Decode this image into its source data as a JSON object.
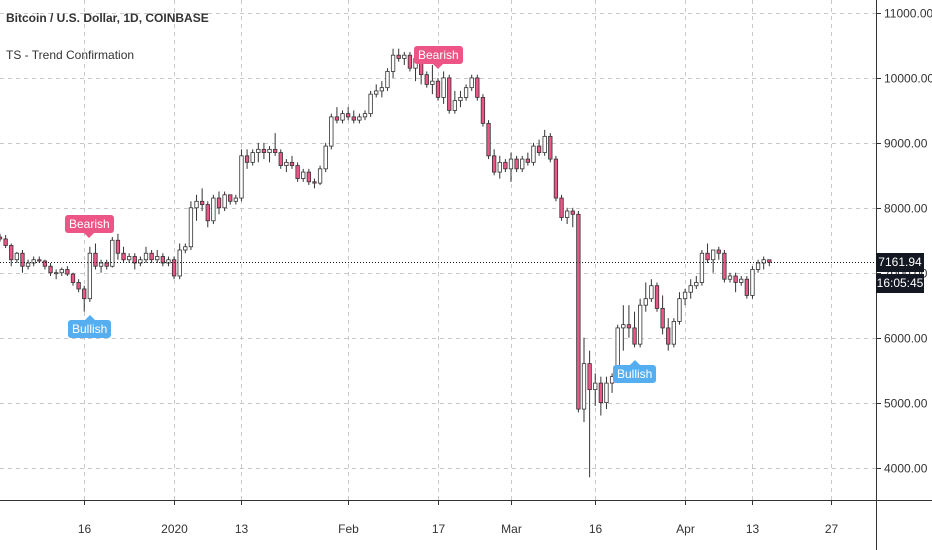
{
  "header": {
    "title": "Bitcoin / U.S. Dollar, 1D, COINBASE",
    "indicator": "TS - Trend Confirmation"
  },
  "price_tags": {
    "last_price": "7161.94",
    "countdown": "16:05:45"
  },
  "colors": {
    "bear": "#ec5586",
    "bull": "#55aef0",
    "grid": "#c8c8c8",
    "axis": "#333333"
  },
  "signals": [
    {
      "label": "Bearish",
      "type": "bearish",
      "date": "2019-12-17"
    },
    {
      "label": "Bullish",
      "type": "bullish",
      "date": "2019-12-17"
    },
    {
      "label": "Bearish",
      "type": "bearish",
      "date": "2020-02-17"
    },
    {
      "label": "Bullish",
      "type": "bullish",
      "date": "2020-03-23"
    }
  ],
  "chart_data": {
    "type": "candlestick",
    "title": "Bitcoin / U.S. Dollar, 1D, COINBASE",
    "x_tick_labels": [
      "16",
      "2020",
      "13",
      "Feb",
      "17",
      "Mar",
      "16",
      "Apr",
      "13",
      "27"
    ],
    "y_tick_labels": [
      "4000.00",
      "5000.00",
      "6000.00",
      "7000.00",
      "8000.00",
      "9000.00",
      "10000.00",
      "11000.00"
    ],
    "ylim": [
      3500,
      11200
    ],
    "xlim": [
      "2019-12-01",
      "2020-05-05"
    ],
    "grid": true,
    "last_price": 7161.94,
    "x_ticks": [
      {
        "label": "16",
        "date": "2019-12-16"
      },
      {
        "label": "2020",
        "date": "2020-01-01"
      },
      {
        "label": "13",
        "date": "2020-01-13"
      },
      {
        "label": "Feb",
        "date": "2020-02-01"
      },
      {
        "label": "17",
        "date": "2020-02-17"
      },
      {
        "label": "Mar",
        "date": "2020-03-01"
      },
      {
        "label": "16",
        "date": "2020-03-16"
      },
      {
        "label": "Apr",
        "date": "2020-04-01"
      },
      {
        "label": "13",
        "date": "2020-04-13"
      },
      {
        "label": "27",
        "date": "2020-04-27"
      }
    ],
    "y_ticks": [
      4000,
      5000,
      6000,
      7000,
      8000,
      9000,
      10000,
      11000
    ],
    "start_date": "2019-12-01",
    "ohlc": [
      [
        7550,
        7600,
        7480,
        7520
      ],
      [
        7520,
        7580,
        7380,
        7420
      ],
      [
        7420,
        7450,
        7100,
        7200
      ],
      [
        7200,
        7320,
        7150,
        7300
      ],
      [
        7300,
        7350,
        7000,
        7100
      ],
      [
        7100,
        7200,
        7050,
        7150
      ],
      [
        7150,
        7250,
        7100,
        7200
      ],
      [
        7200,
        7250,
        7150,
        7180
      ],
      [
        7180,
        7200,
        7050,
        7100
      ],
      [
        7100,
        7150,
        6950,
        7000
      ],
      [
        7000,
        7050,
        6900,
        7000
      ],
      [
        7000,
        7080,
        6950,
        7050
      ],
      [
        7050,
        7100,
        6950,
        6980
      ],
      [
        6980,
        7000,
        6800,
        6850
      ],
      [
        6850,
        6900,
        6700,
        6750
      ],
      [
        6750,
        6800,
        6400,
        6600
      ],
      [
        6600,
        7400,
        6550,
        7300
      ],
      [
        7300,
        7450,
        7050,
        7100
      ],
      [
        7100,
        7200,
        7000,
        7150
      ],
      [
        7150,
        7200,
        7050,
        7100
      ],
      [
        7100,
        7550,
        7080,
        7500
      ],
      [
        7500,
        7600,
        7200,
        7300
      ],
      [
        7300,
        7400,
        7150,
        7200
      ],
      [
        7200,
        7300,
        7150,
        7250
      ],
      [
        7250,
        7300,
        7050,
        7150
      ],
      [
        7150,
        7250,
        7100,
        7200
      ],
      [
        7200,
        7400,
        7150,
        7300
      ],
      [
        7300,
        7350,
        7150,
        7200
      ],
      [
        7200,
        7350,
        7150,
        7250
      ],
      [
        7250,
        7300,
        7100,
        7150
      ],
      [
        7150,
        7250,
        7100,
        7200
      ],
      [
        7200,
        7250,
        6900,
        6950
      ],
      [
        6950,
        7450,
        6900,
        7350
      ],
      [
        7350,
        7450,
        7300,
        7400
      ],
      [
        7400,
        8100,
        7350,
        8000
      ],
      [
        8000,
        8200,
        7800,
        8100
      ],
      [
        8100,
        8300,
        7950,
        8050
      ],
      [
        8050,
        8100,
        7700,
        7800
      ],
      [
        7800,
        8200,
        7750,
        8150
      ],
      [
        8150,
        8250,
        7900,
        8000
      ],
      [
        8000,
        8250,
        7950,
        8200
      ],
      [
        8200,
        8200,
        8050,
        8100
      ],
      [
        8100,
        8200,
        8050,
        8150
      ],
      [
        8150,
        8900,
        8100,
        8800
      ],
      [
        8800,
        8900,
        8600,
        8700
      ],
      [
        8700,
        8900,
        8650,
        8850
      ],
      [
        8850,
        9000,
        8700,
        8900
      ],
      [
        8900,
        9000,
        8750,
        8850
      ],
      [
        8850,
        8950,
        8700,
        8900
      ],
      [
        8900,
        9150,
        8800,
        8850
      ],
      [
        8850,
        8900,
        8600,
        8650
      ],
      [
        8650,
        8750,
        8550,
        8700
      ],
      [
        8700,
        8800,
        8600,
        8650
      ],
      [
        8650,
        8700,
        8400,
        8450
      ],
      [
        8450,
        8600,
        8400,
        8550
      ],
      [
        8550,
        8600,
        8350,
        8400
      ],
      [
        8400,
        8450,
        8300,
        8380
      ],
      [
        8380,
        8650,
        8350,
        8600
      ],
      [
        8600,
        9000,
        8550,
        8950
      ],
      [
        8950,
        9450,
        8900,
        9400
      ],
      [
        9400,
        9550,
        9300,
        9350
      ],
      [
        9350,
        9500,
        9300,
        9450
      ],
      [
        9450,
        9550,
        9350,
        9400
      ],
      [
        9400,
        9500,
        9300,
        9350
      ],
      [
        9350,
        9450,
        9300,
        9400
      ],
      [
        9400,
        9500,
        9350,
        9450
      ],
      [
        9450,
        9800,
        9400,
        9750
      ],
      [
        9750,
        9900,
        9700,
        9800
      ],
      [
        9800,
        9950,
        9700,
        9850
      ],
      [
        9850,
        10150,
        9800,
        10100
      ],
      [
        10100,
        10450,
        10000,
        10350
      ],
      [
        10350,
        10450,
        10250,
        10300
      ],
      [
        10300,
        10400,
        10200,
        10350
      ],
      [
        10350,
        10400,
        10100,
        10150
      ],
      [
        10150,
        10400,
        9950,
        10300
      ],
      [
        10300,
        10350,
        9900,
        10050
      ],
      [
        10050,
        10100,
        9850,
        9900
      ],
      [
        9900,
        10200,
        9750,
        9950
      ],
      [
        9950,
        10000,
        9650,
        9700
      ],
      [
        9700,
        10100,
        9600,
        10000
      ],
      [
        10000,
        10050,
        9450,
        9500
      ],
      [
        9500,
        9800,
        9450,
        9650
      ],
      [
        9650,
        9800,
        9550,
        9700
      ],
      [
        9700,
        9900,
        9650,
        9850
      ],
      [
        9850,
        10050,
        9800,
        10000
      ],
      [
        10000,
        10050,
        9650,
        9700
      ],
      [
        9700,
        9750,
        9250,
        9300
      ],
      [
        9300,
        9350,
        8750,
        8800
      ],
      [
        8800,
        8900,
        8500,
        8550
      ],
      [
        8550,
        8800,
        8450,
        8700
      ],
      [
        8700,
        8750,
        8550,
        8600
      ],
      [
        8600,
        8850,
        8400,
        8750
      ],
      [
        8750,
        8800,
        8550,
        8600
      ],
      [
        8600,
        8800,
        8550,
        8750
      ],
      [
        8750,
        8850,
        8650,
        8700
      ],
      [
        8700,
        9000,
        8650,
        8950
      ],
      [
        8950,
        9050,
        8800,
        8850
      ],
      [
        8850,
        9200,
        8800,
        9100
      ],
      [
        9100,
        9150,
        8700,
        8750
      ],
      [
        8750,
        8800,
        8100,
        8150
      ],
      [
        8150,
        8200,
        7800,
        7850
      ],
      [
        7850,
        8000,
        7750,
        7950
      ],
      [
        7950,
        8000,
        7700,
        7900
      ],
      [
        7900,
        7950,
        4850,
        4900
      ],
      [
        4900,
        6000,
        4700,
        5600
      ],
      [
        5600,
        5800,
        3850,
        5200
      ],
      [
        5200,
        5450,
        4950,
        5300
      ],
      [
        5300,
        5400,
        4800,
        5000
      ],
      [
        5000,
        5400,
        4900,
        5300
      ],
      [
        5300,
        5450,
        5150,
        5400
      ],
      [
        5400,
        6200,
        5300,
        6150
      ],
      [
        6150,
        6500,
        5800,
        6200
      ],
      [
        6200,
        6500,
        6000,
        6150
      ],
      [
        6150,
        6400,
        5850,
        5900
      ],
      [
        5900,
        6600,
        5850,
        6500
      ],
      [
        6500,
        6850,
        6400,
        6600
      ],
      [
        6600,
        6900,
        6550,
        6800
      ],
      [
        6800,
        6850,
        6400,
        6450
      ],
      [
        6450,
        6650,
        6050,
        6150
      ],
      [
        6150,
        6300,
        5800,
        5900
      ],
      [
        5900,
        6300,
        5850,
        6250
      ],
      [
        6250,
        6700,
        6200,
        6600
      ],
      [
        6600,
        6750,
        6500,
        6700
      ],
      [
        6700,
        6900,
        6600,
        6800
      ],
      [
        6800,
        6950,
        6750,
        6850
      ],
      [
        6850,
        7350,
        6800,
        7300
      ],
      [
        7300,
        7450,
        7150,
        7200
      ],
      [
        7200,
        7350,
        7000,
        7350
      ],
      [
        7350,
        7400,
        7200,
        7300
      ],
      [
        7300,
        7350,
        6850,
        6900
      ],
      [
        6900,
        7000,
        6850,
        6950
      ],
      [
        6950,
        7000,
        6700,
        6850
      ],
      [
        6850,
        6950,
        6800,
        6900
      ],
      [
        6900,
        6950,
        6600,
        6650
      ],
      [
        6650,
        7100,
        6600,
        7050
      ],
      [
        7050,
        7200,
        7000,
        7150
      ],
      [
        7150,
        7250,
        7050,
        7200
      ],
      [
        7200,
        7200,
        7100,
        7162
      ]
    ]
  }
}
